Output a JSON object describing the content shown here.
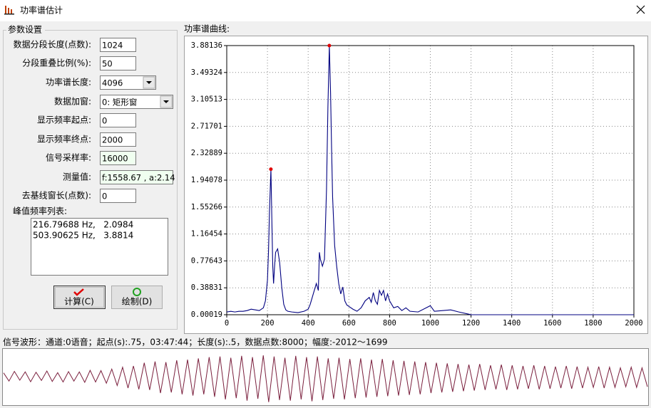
{
  "window": {
    "title": "功率谱估计"
  },
  "params": {
    "group_title": "参数设置",
    "fields": [
      {
        "label": "数据分段长度(点数):",
        "value": 1024
      },
      {
        "label": "分段重叠比例(%):",
        "value": 50
      },
      {
        "label": "功率谱长度:",
        "value": 4096
      },
      {
        "label": "数据加窗:",
        "value": "0: 矩形窗"
      },
      {
        "label": "显示频率起点:",
        "value": 0
      },
      {
        "label": "显示频率终点:",
        "value": 2000
      },
      {
        "label": "信号采样率:",
        "value": 16000
      },
      {
        "label": "测量值:",
        "value": "f:1558.67 , a:2.14"
      },
      {
        "label": "去基线窗长(点数):",
        "value": 0
      }
    ],
    "peak_list_label": "峰值频率列表:",
    "peak_list": [
      "216.79688 Hz,   2.0984",
      "503.90625 Hz,   3.8814"
    ],
    "buttons": [
      "计算(C)",
      "绘制(D)"
    ]
  },
  "chart_data": [
    {
      "type": "line",
      "title": "功率谱曲线:",
      "x": [
        0,
        20,
        40,
        60,
        80,
        100,
        120,
        140,
        160,
        180,
        190,
        200,
        205,
        210,
        217,
        222,
        226,
        230,
        235,
        240,
        250,
        260,
        270,
        280,
        290,
        300,
        320,
        350,
        380,
        400,
        410,
        420,
        430,
        440,
        450,
        455,
        460,
        470,
        480,
        490,
        497,
        504,
        510,
        515,
        520,
        530,
        540,
        550,
        560,
        570,
        580,
        590,
        600,
        620,
        640,
        660,
        680,
        700,
        710,
        720,
        730,
        740,
        750,
        760,
        770,
        780,
        790,
        800,
        820,
        840,
        860,
        880,
        900,
        940,
        980,
        1000,
        1020,
        1060,
        1100,
        1140,
        1200,
        1300,
        1600,
        2000
      ],
      "values": [
        0.04,
        0.05,
        0.04,
        0.05,
        0.05,
        0.06,
        0.08,
        0.07,
        0.06,
        0.1,
        0.2,
        0.5,
        0.9,
        1.5,
        2.0984,
        1.3,
        0.7,
        0.45,
        0.7,
        0.9,
        0.95,
        0.75,
        0.4,
        0.15,
        0.07,
        0.05,
        0.04,
        0.03,
        0.05,
        0.08,
        0.15,
        0.25,
        0.35,
        0.45,
        0.35,
        0.9,
        0.8,
        0.7,
        0.8,
        1.8,
        3.0,
        3.8814,
        3.2,
        2.4,
        1.7,
        1.0,
        0.7,
        0.45,
        0.3,
        0.4,
        0.2,
        0.14,
        0.12,
        0.08,
        0.05,
        0.1,
        0.2,
        0.25,
        0.18,
        0.32,
        0.2,
        0.15,
        0.35,
        0.28,
        0.35,
        0.2,
        0.3,
        0.2,
        0.1,
        0.12,
        0.06,
        0.1,
        0.05,
        0.04,
        0.1,
        0.13,
        0.05,
        0.06,
        0.07,
        0.04,
        0.0005,
        0.0002,
        0.0002,
        0.0002
      ],
      "color": "#000080",
      "peaks": {
        "x": [
          216.79688,
          503.90625
        ],
        "values": [
          2.0984,
          3.8814
        ],
        "color": "#e00000"
      },
      "xlim": [
        0,
        2000
      ],
      "xticks": [
        0,
        200,
        400,
        600,
        800,
        1000,
        1200,
        1400,
        1600,
        1800,
        2000
      ],
      "ylim": [
        0.00019,
        3.88136
      ],
      "yticks": [
        0.00019,
        0.38831,
        0.77643,
        1.16454,
        1.55266,
        1.94078,
        2.32889,
        2.71701,
        3.10513,
        3.49324,
        3.88136
      ],
      "grid": true
    },
    {
      "type": "line",
      "title": "信号波形：通道:0语音；起点(s):.75，03:47:44；长度(s):.5，数据点数:8000；幅度:-2012～1699",
      "color": "#7a1f3d",
      "ylim": [
        -2200,
        2200
      ],
      "values": [
        300,
        -350,
        420,
        -280,
        380,
        -400,
        350,
        -300,
        450,
        -380,
        320,
        -420,
        400,
        -350,
        380,
        -450,
        500,
        -420,
        480,
        -520,
        600,
        -700,
        750,
        -900,
        850,
        -1000,
        1100,
        -1050,
        1200,
        -1300,
        1150,
        -1250,
        1300,
        -1400,
        1350,
        -1500,
        1450,
        -1400,
        1550,
        -1600,
        1600,
        -1800,
        1500,
        -1700,
        1650,
        -1900,
        1550,
        -1750,
        1690,
        -2012,
        1600,
        -1850,
        1500,
        -1900,
        1650,
        -1800,
        1550,
        -1950,
        1600,
        -1850,
        1450,
        -1750,
        1500,
        -1800,
        1400,
        -1700,
        1450,
        -1650,
        1350,
        -1600,
        1400,
        -1550,
        1300,
        -1500,
        1250,
        -1450,
        1200,
        -1400,
        1150,
        -1300,
        1100,
        -1250,
        1050,
        -1200,
        1000,
        -1150,
        950,
        -1100,
        1000,
        -1050,
        900,
        -1000,
        950,
        -1050,
        900,
        -1000,
        850,
        -950,
        900,
        -1000,
        850,
        -950,
        800,
        -900,
        850,
        -950,
        800,
        -900,
        750,
        -850,
        800,
        -900,
        750,
        -850,
        700,
        -800,
        750,
        -850,
        700,
        -800
      ]
    }
  ]
}
